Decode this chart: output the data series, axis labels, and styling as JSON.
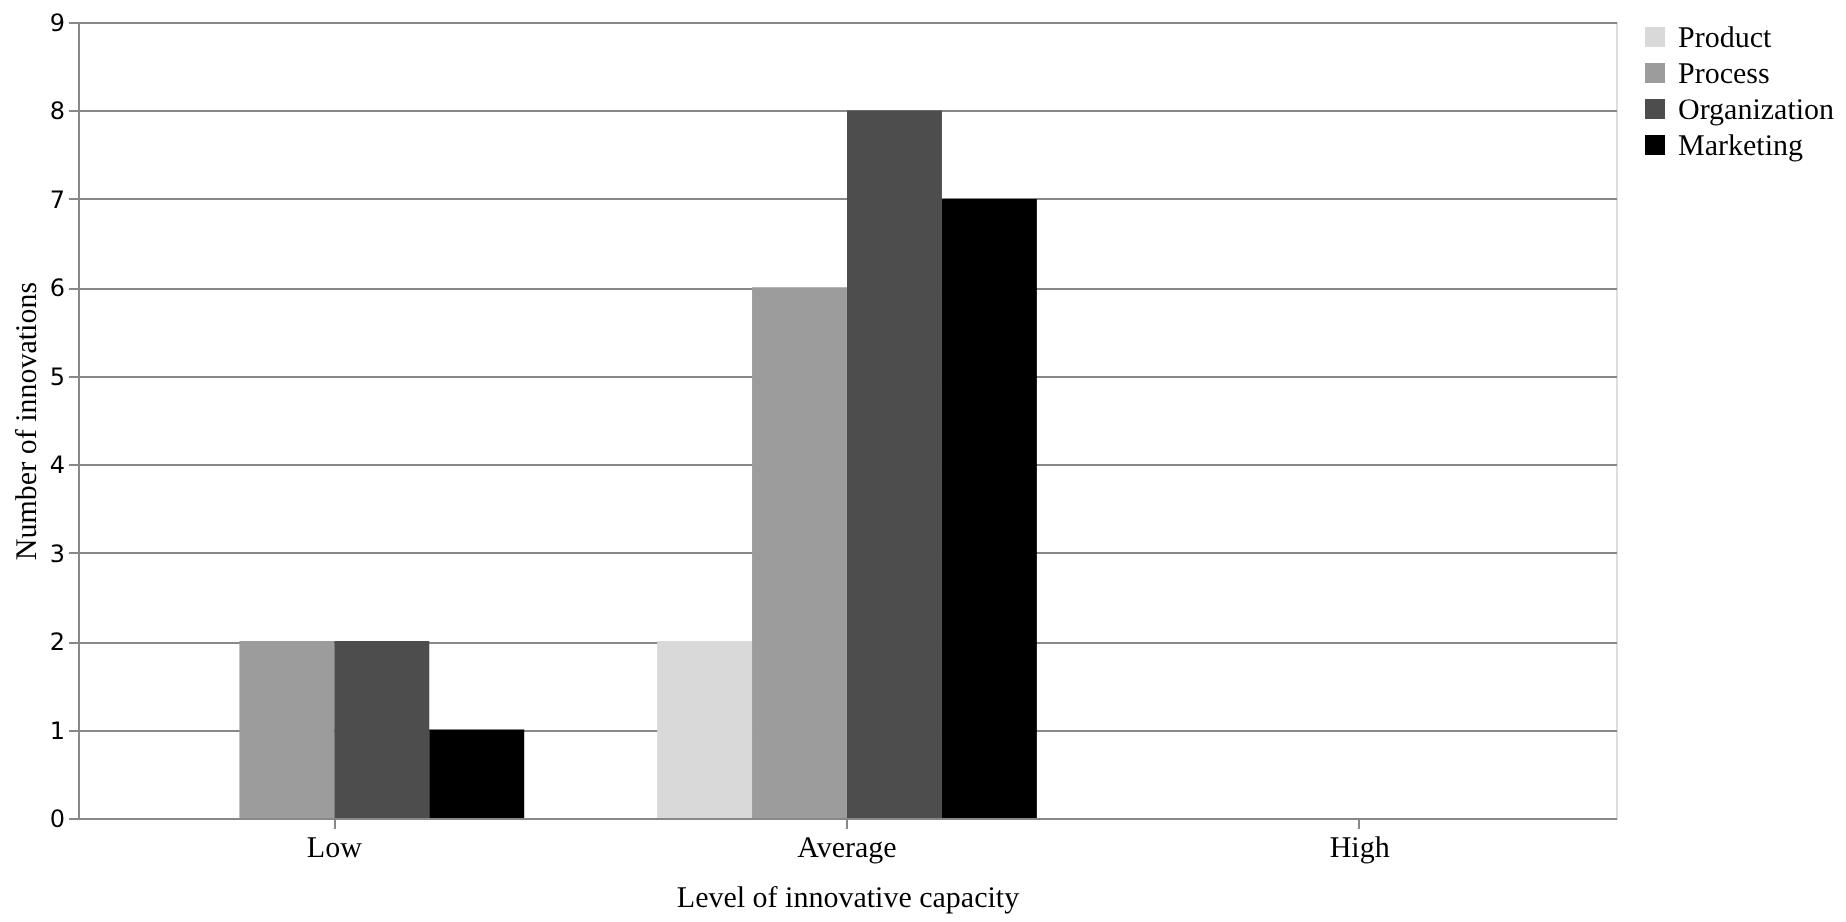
{
  "chart_data": {
    "type": "bar",
    "xlabel": "Level of innovative capacity",
    "ylabel": "Number of innovations",
    "categories": [
      "Low",
      "Average",
      "High"
    ],
    "series": [
      {
        "name": "Product",
        "color": "#d9d9d9",
        "values": [
          0,
          2,
          0
        ]
      },
      {
        "name": "Process",
        "color": "#9c9c9c",
        "values": [
          2,
          6,
          0
        ]
      },
      {
        "name": "Organization",
        "color": "#4d4d4d",
        "values": [
          2,
          8,
          0
        ]
      },
      {
        "name": "Marketing",
        "color": "#000000",
        "values": [
          1,
          7,
          0
        ]
      }
    ],
    "ylim": [
      0,
      9
    ],
    "yticks": [
      0,
      1,
      2,
      3,
      4,
      5,
      6,
      7,
      8,
      9
    ],
    "grid": "y",
    "legend": "right"
  }
}
